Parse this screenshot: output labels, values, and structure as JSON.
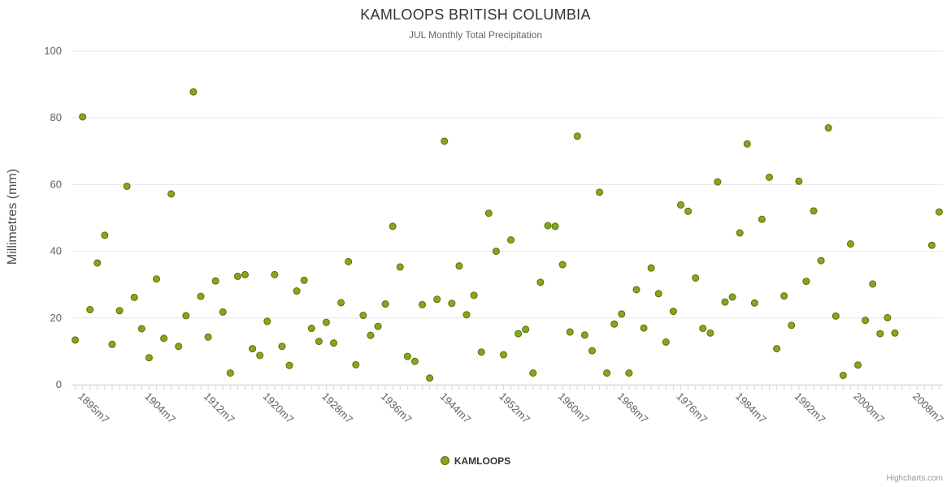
{
  "title": "KAMLOOPS BRITISH COLUMBIA",
  "subtitle": "JUL Monthly Total Precipitation",
  "y_axis_title": "Millimetres (mm)",
  "legend": {
    "label": "KAMLOOPS"
  },
  "credits": "Highcharts.com",
  "colors": {
    "marker_fill": "#85a71c",
    "marker_stroke": "#55700e",
    "grid": "#e6e6e6",
    "axis_line": "#ccd6eb",
    "axis_text": "#606060",
    "title_text": "#333333",
    "subtitle_text": "#666666"
  },
  "chart_data": {
    "type": "scatter",
    "title": "KAMLOOPS BRITISH COLUMBIA",
    "subtitle": "JUL Monthly Total Precipitation",
    "ylabel": "Millimetres (mm)",
    "xlabel": "",
    "ylim": [
      0,
      100
    ],
    "y_ticks": [
      0,
      20,
      40,
      60,
      80,
      100
    ],
    "x_range": [
      1894.5,
      2012.5
    ],
    "x_tick_labels": [
      "1895m7",
      "1904m7",
      "1912m7",
      "1920m7",
      "1928m7",
      "1936m7",
      "1944m7",
      "1952m7",
      "1960m7",
      "1968m7",
      "1976m7",
      "1984m7",
      "1992m7",
      "2000m7",
      "2008m7"
    ],
    "legend_position": "bottom-center",
    "grid": "horizontal",
    "series_name": "KAMLOOPS",
    "points": [
      [
        "1895m7",
        13.4
      ],
      [
        "1896m7",
        80.3
      ],
      [
        "1897m7",
        22.5
      ],
      [
        "1898m7",
        36.5
      ],
      [
        "1899m7",
        44.8
      ],
      [
        "1900m7",
        12.1
      ],
      [
        "1901m7",
        22.2
      ],
      [
        "1902m7",
        59.5
      ],
      [
        "1903m7",
        26.2
      ],
      [
        "1904m7",
        16.8
      ],
      [
        "1905m7",
        8.1
      ],
      [
        "1906m7",
        31.7
      ],
      [
        "1907m7",
        13.9
      ],
      [
        "1908m7",
        57.2
      ],
      [
        "1909m7",
        11.5
      ],
      [
        "1910m7",
        20.7
      ],
      [
        "1911m7",
        87.8
      ],
      [
        "1912m7",
        26.5
      ],
      [
        "1913m7",
        14.3
      ],
      [
        "1914m7",
        31.1
      ],
      [
        "1915m7",
        21.8
      ],
      [
        "1916m7",
        3.5
      ],
      [
        "1917m7",
        32.5
      ],
      [
        "1918m7",
        33.0
      ],
      [
        "1919m7",
        10.8
      ],
      [
        "1920m7",
        8.8
      ],
      [
        "1921m7",
        19.0
      ],
      [
        "1922m7",
        33.0
      ],
      [
        "1923m7",
        11.5
      ],
      [
        "1924m7",
        5.8
      ],
      [
        "1925m7",
        28.1
      ],
      [
        "1926m7",
        31.3
      ],
      [
        "1927m7",
        16.9
      ],
      [
        "1928m7",
        13.0
      ],
      [
        "1929m7",
        18.7
      ],
      [
        "1930m7",
        12.5
      ],
      [
        "1931m7",
        24.6
      ],
      [
        "1932m7",
        36.9
      ],
      [
        "1933m7",
        6.0
      ],
      [
        "1934m7",
        20.8
      ],
      [
        "1935m7",
        14.8
      ],
      [
        "1936m7",
        17.5
      ],
      [
        "1937m7",
        24.2
      ],
      [
        "1938m7",
        47.5
      ],
      [
        "1939m7",
        35.3
      ],
      [
        "1940m7",
        8.5
      ],
      [
        "1941m7",
        7.0
      ],
      [
        "1942m7",
        24.0
      ],
      [
        "1943m7",
        2.0
      ],
      [
        "1944m7",
        25.6
      ],
      [
        "1945m7",
        73.0
      ],
      [
        "1946m7",
        24.4
      ],
      [
        "1947m7",
        35.6
      ],
      [
        "1948m7",
        21.0
      ],
      [
        "1949m7",
        26.8
      ],
      [
        "1950m7",
        9.8
      ],
      [
        "1951m7",
        51.4
      ],
      [
        "1952m7",
        40.0
      ],
      [
        "1953m7",
        9.0
      ],
      [
        "1954m7",
        43.4
      ],
      [
        "1955m7",
        15.3
      ],
      [
        "1956m7",
        16.6
      ],
      [
        "1957m7",
        3.5
      ],
      [
        "1958m7",
        30.7
      ],
      [
        "1959m7",
        47.7
      ],
      [
        "1960m7",
        47.5
      ],
      [
        "1961m7",
        36.0
      ],
      [
        "1962m7",
        15.8
      ],
      [
        "1963m7",
        74.5
      ],
      [
        "1964m7",
        14.9
      ],
      [
        "1965m7",
        10.2
      ],
      [
        "1966m7",
        57.7
      ],
      [
        "1967m7",
        3.5
      ],
      [
        "1968m7",
        18.2
      ],
      [
        "1969m7",
        21.2
      ],
      [
        "1970m7",
        3.5
      ],
      [
        "1971m7",
        28.5
      ],
      [
        "1972m7",
        17.0
      ],
      [
        "1973m7",
        35.0
      ],
      [
        "1974m7",
        27.3
      ],
      [
        "1975m7",
        12.8
      ],
      [
        "1976m7",
        22.0
      ],
      [
        "1977m7",
        53.9
      ],
      [
        "1978m7",
        52.0
      ],
      [
        "1979m7",
        32.0
      ],
      [
        "1980m7",
        16.9
      ],
      [
        "1981m7",
        15.5
      ],
      [
        "1982m7",
        60.8
      ],
      [
        "1983m7",
        24.8
      ],
      [
        "1984m7",
        26.3
      ],
      [
        "1985m7",
        45.5
      ],
      [
        "1986m7",
        72.2
      ],
      [
        "1987m7",
        24.5
      ],
      [
        "1988m7",
        49.6
      ],
      [
        "1989m7",
        62.2
      ],
      [
        "1990m7",
        10.8
      ],
      [
        "1991m7",
        26.6
      ],
      [
        "1992m7",
        17.8
      ],
      [
        "1993m7",
        61.0
      ],
      [
        "1994m7",
        31.0
      ],
      [
        "1995m7",
        52.1
      ],
      [
        "1996m7",
        37.2
      ],
      [
        "1997m7",
        77.0
      ],
      [
        "1998m7",
        20.6
      ],
      [
        "1999m7",
        2.8
      ],
      [
        "2000m7",
        42.2
      ],
      [
        "2001m7",
        5.9
      ],
      [
        "2002m7",
        19.3
      ],
      [
        "2003m7",
        30.2
      ],
      [
        "2004m7",
        15.3
      ],
      [
        "2005m7",
        20.1
      ],
      [
        "2006m7",
        15.5
      ],
      [
        "2011m7",
        41.8
      ],
      [
        "2012m7",
        51.8
      ]
    ]
  }
}
